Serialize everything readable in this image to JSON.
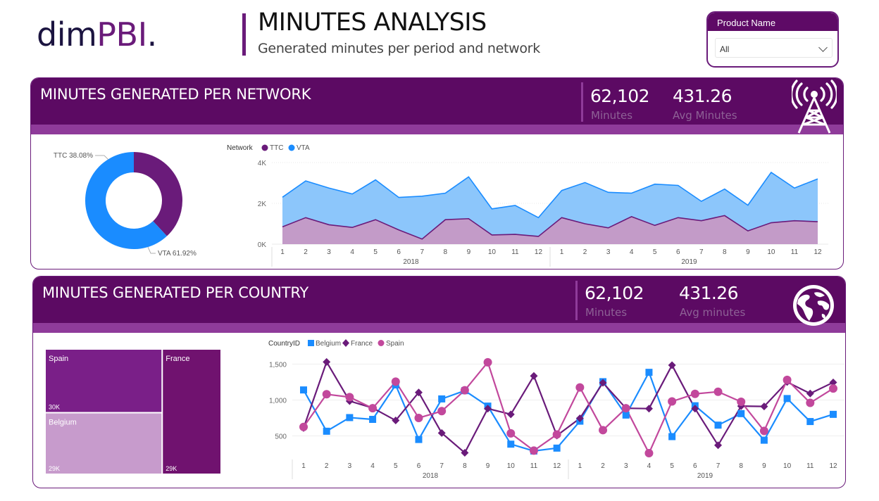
{
  "logo": {
    "part1": "dim",
    "part2": "PBI",
    "part3": "."
  },
  "page": {
    "title": "MINUTES ANALYSIS",
    "subtitle": "Generated minutes per period and network"
  },
  "slicer": {
    "label": "Product Name",
    "value": "All",
    "icon": "chevron-down-icon"
  },
  "network_panel": {
    "title": "MINUTES GENERATED PER NETWORK",
    "kpi_minutes_value": "62,102",
    "kpi_minutes_label": "Minutes",
    "kpi_avg_value": "431.26",
    "kpi_avg_label": "Avg Minutes",
    "icon": "antenna-tower-icon"
  },
  "country_panel": {
    "title": "MINUTES GENERATED PER COUNTRY",
    "kpi_minutes_value": "62,102",
    "kpi_minutes_label": "Minutes",
    "kpi_avg_value": "431.26",
    "kpi_avg_label": "Avg minutes",
    "icon": "globe-icon"
  },
  "colors": {
    "brand": "#5c0a63",
    "ttc": "#6a1b7a",
    "vta": "#1a8cff",
    "belgium": "#1a8cff",
    "france": "#6a1b7a",
    "spain": "#c2489c"
  },
  "chart_data": [
    {
      "type": "pie",
      "variant": "donut",
      "categories": [
        "TTC",
        "VTA"
      ],
      "values": [
        38.08,
        61.92
      ],
      "labels": [
        "TTC 38.08%",
        "VTA 61.92%"
      ]
    },
    {
      "type": "area",
      "stacked": true,
      "legend_title": "Network",
      "legend_position": "top-left",
      "x_months": [
        "1",
        "2",
        "3",
        "4",
        "5",
        "6",
        "7",
        "8",
        "9",
        "10",
        "11",
        "12",
        "1",
        "2",
        "3",
        "4",
        "5",
        "6",
        "7",
        "8",
        "9",
        "10",
        "11",
        "12"
      ],
      "x_years": [
        "2018",
        "2019"
      ],
      "y_ticks": [
        "0K",
        "2K",
        "4K"
      ],
      "ylim": [
        0,
        4000
      ],
      "grid": true,
      "series": [
        {
          "name": "TTC",
          "values": [
            850,
            1300,
            950,
            820,
            1200,
            700,
            250,
            1200,
            1250,
            450,
            480,
            380,
            1300,
            1000,
            800,
            1350,
            920,
            1300,
            1150,
            1400,
            650,
            1050,
            1150,
            1100
          ]
        },
        {
          "name": "VTA",
          "values": [
            1450,
            1800,
            1800,
            1640,
            1950,
            1590,
            2100,
            1300,
            2050,
            1280,
            1420,
            920,
            1330,
            2020,
            1740,
            1150,
            2020,
            1580,
            950,
            1300,
            1260,
            2470,
            1600,
            2100
          ]
        }
      ]
    },
    {
      "type": "treemap",
      "categories": [
        "Spain",
        "Belgium",
        "France"
      ],
      "values": [
        30000,
        29000,
        29000
      ],
      "value_labels": [
        "30K",
        "29K",
        "29K"
      ]
    },
    {
      "type": "line",
      "legend_title": "CountryID",
      "legend_position": "top-left",
      "x_months": [
        "1",
        "2",
        "3",
        "4",
        "5",
        "6",
        "7",
        "8",
        "9",
        "10",
        "11",
        "12",
        "1",
        "2",
        "3",
        "4",
        "5",
        "6",
        "7",
        "8",
        "9",
        "10",
        "11",
        "12"
      ],
      "x_years": [
        "2018",
        "2019"
      ],
      "y_ticks": [
        "500",
        "1,000",
        "1,500"
      ],
      "ylim": [
        250,
        1700
      ],
      "grid": true,
      "series": [
        {
          "name": "Belgium",
          "marker": "square",
          "values": [
            1140,
            565,
            755,
            730,
            1210,
            450,
            1015,
            1130,
            915,
            385,
            290,
            330,
            705,
            1255,
            790,
            1385,
            490,
            920,
            650,
            810,
            440,
            1020,
            700,
            800
          ]
        },
        {
          "name": "France",
          "marker": "diamond",
          "values": [
            610,
            1530,
            985,
            890,
            715,
            1105,
            540,
            265,
            880,
            800,
            1335,
            505,
            745,
            1240,
            885,
            880,
            1485,
            880,
            370,
            915,
            910,
            1250,
            1090,
            1245
          ]
        },
        {
          "name": "Spain",
          "marker": "circle",
          "values": [
            625,
            1080,
            1040,
            885,
            1255,
            750,
            845,
            1135,
            1525,
            535,
            295,
            520,
            1175,
            580,
            885,
            260,
            980,
            1085,
            1115,
            975,
            570,
            1280,
            960,
            1160
          ]
        }
      ]
    }
  ]
}
